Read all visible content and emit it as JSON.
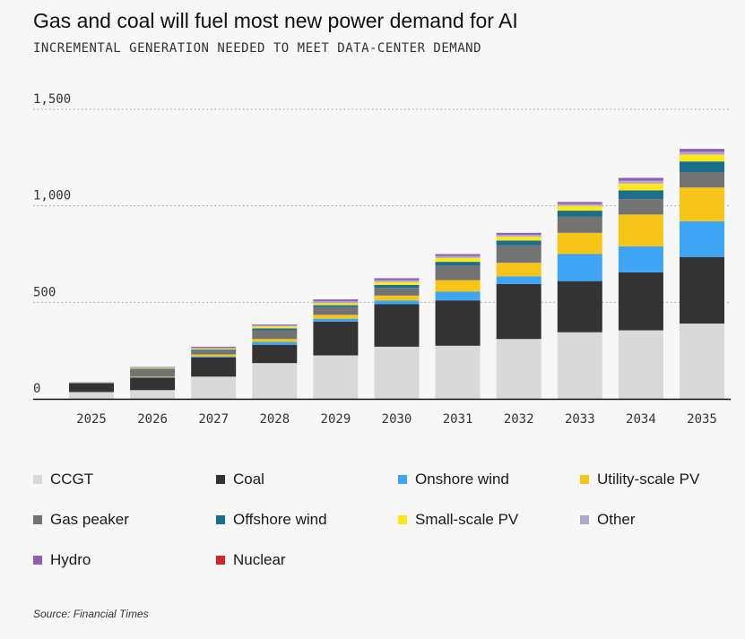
{
  "title": "Gas and coal will fuel most new power demand for AI",
  "subtitle": "INCREMENTAL GENERATION NEEDED TO MEET DATA-CENTER DEMAND",
  "source": "Source: Financial Times",
  "chart_data": {
    "type": "bar",
    "stacked": true,
    "title": "Gas and coal will fuel most new power demand for AI",
    "subtitle": "INCREMENTAL GENERATION NEEDED TO MEET DATA-CENTER DEMAND",
    "categories": [
      "2025",
      "2026",
      "2027",
      "2028",
      "2029",
      "2030",
      "2031",
      "2032",
      "2033",
      "2034",
      "2035"
    ],
    "ylim": [
      0,
      1500
    ],
    "yticks": [
      0,
      500,
      1000,
      1500
    ],
    "ytick_labels": [
      "0",
      "500",
      "1,000",
      "1,500"
    ],
    "grid": true,
    "legend_position": "bottom",
    "series": [
      {
        "name": "CCGT",
        "color": "#d9d9d9",
        "values": [
          35,
          45,
          115,
          185,
          225,
          270,
          275,
          310,
          345,
          355,
          390
        ]
      },
      {
        "name": "Coal",
        "color": "#333333",
        "values": [
          45,
          65,
          100,
          95,
          175,
          220,
          235,
          285,
          265,
          300,
          345
        ]
      },
      {
        "name": "Onshore wind",
        "color": "#3da5f4",
        "values": [
          0,
          2,
          5,
          15,
          15,
          20,
          45,
          40,
          140,
          135,
          185
        ]
      },
      {
        "name": "Utility-scale PV",
        "color": "#f5c518",
        "values": [
          0,
          3,
          10,
          15,
          20,
          25,
          60,
          70,
          110,
          165,
          175
        ]
      },
      {
        "name": "Gas peaker",
        "color": "#737373",
        "values": [
          5,
          40,
          20,
          45,
          40,
          40,
          75,
          90,
          85,
          80,
          80
        ]
      },
      {
        "name": "Offshore wind",
        "color": "#1a6e8e",
        "values": [
          0,
          2,
          5,
          10,
          10,
          15,
          20,
          25,
          30,
          45,
          55
        ]
      },
      {
        "name": "Small-scale PV",
        "color": "#ffe81a",
        "values": [
          0,
          3,
          5,
          10,
          10,
          15,
          20,
          20,
          25,
          35,
          35
        ]
      },
      {
        "name": "Other",
        "color": "#b3a6cc",
        "values": [
          0,
          2,
          5,
          5,
          10,
          10,
          10,
          10,
          10,
          15,
          15
        ]
      },
      {
        "name": "Hydro",
        "color": "#8e5fb5",
        "values": [
          0,
          3,
          5,
          5,
          10,
          10,
          10,
          10,
          10,
          15,
          15
        ]
      },
      {
        "name": "Nuclear",
        "color": "#d62728",
        "values": [
          0,
          0,
          0,
          0,
          0,
          0,
          0,
          0,
          0,
          0,
          0
        ]
      }
    ]
  },
  "legend": [
    {
      "label": "CCGT",
      "color": "#d9d9d9"
    },
    {
      "label": "Coal",
      "color": "#333333"
    },
    {
      "label": "Onshore wind",
      "color": "#3da5f4"
    },
    {
      "label": "Utility-scale PV",
      "color": "#f5c518"
    },
    {
      "label": "Gas peaker",
      "color": "#737373"
    },
    {
      "label": "Offshore wind",
      "color": "#1a6e8e"
    },
    {
      "label": "Small-scale PV",
      "color": "#ffe81a"
    },
    {
      "label": "Other",
      "color": "#b3a6cc"
    },
    {
      "label": "Hydro",
      "color": "#8e5fb5"
    },
    {
      "label": "Nuclear",
      "color": "#d62728"
    }
  ]
}
